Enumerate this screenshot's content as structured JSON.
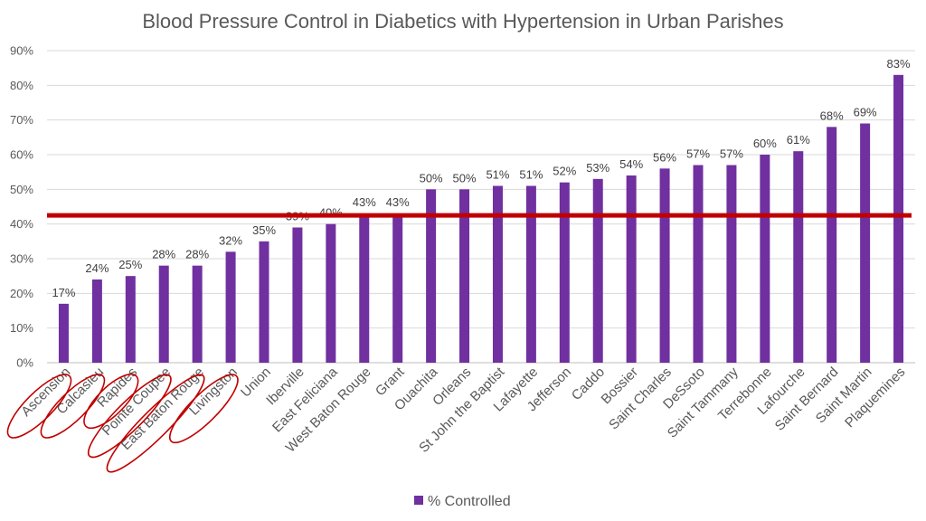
{
  "chart_data": {
    "type": "bar",
    "title": "Blood Pressure Control in Diabetics with Hypertension in Urban Parishes",
    "xlabel": "",
    "ylabel": "",
    "ylim": [
      0,
      90
    ],
    "y_ticks": [
      "0%",
      "10%",
      "20%",
      "30%",
      "40%",
      "50%",
      "60%",
      "70%",
      "80%",
      "90%"
    ],
    "grid": true,
    "legend_position": "bottom",
    "series": [
      {
        "name": "% Controlled",
        "color": "#7030A0",
        "values": [
          17,
          24,
          25,
          28,
          28,
          32,
          35,
          39,
          40,
          43,
          43,
          50,
          50,
          51,
          51,
          52,
          53,
          54,
          56,
          57,
          57,
          60,
          61,
          68,
          69,
          83
        ],
        "labels": [
          "17%",
          "24%",
          "25%",
          "28%",
          "28%",
          "32%",
          "35%",
          "39%",
          "40%",
          "43%",
          "43%",
          "50%",
          "50%",
          "51%",
          "51%",
          "52%",
          "53%",
          "54%",
          "56%",
          "57%",
          "57%",
          "60%",
          "61%",
          "68%",
          "69%",
          "83%"
        ]
      }
    ],
    "categories": [
      "Ascension",
      "Calcasieu",
      "Rapides",
      "Pointe Coupee",
      "East Baton Rouge",
      "Livingston",
      "Union",
      "Iberville",
      "East Feliciana",
      "West Baton Rouge",
      "Grant",
      "Ouachita",
      "Orleans",
      "St John the Baptist",
      "Lafayette",
      "Jefferson",
      "Caddo",
      "Bossier",
      "Saint Charles",
      "DeSsoto",
      "Saint Tammany",
      "Terrebonne",
      "Lafourche",
      "Saint Bernard",
      "Saint Martin",
      "Plaquemines"
    ],
    "reference_line": {
      "value": 42.5,
      "color": "#C00000"
    },
    "circled_categories": [
      "Ascension",
      "Calcasieu",
      "Rapides",
      "Pointe Coupee",
      "East Baton Rouge",
      "Livingston"
    ],
    "annotation_color": "#C00000"
  }
}
